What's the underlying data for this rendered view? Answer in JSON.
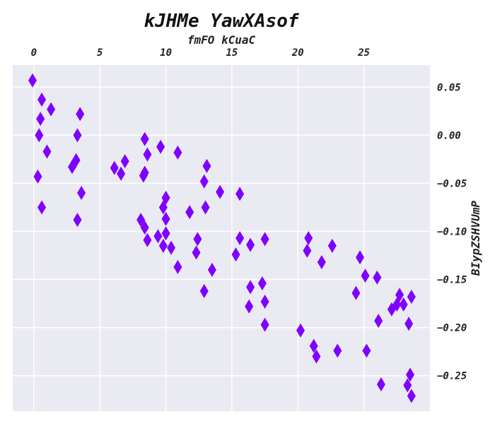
{
  "chart_data": {
    "type": "scatter",
    "title": "kJHMe YawXAsof",
    "xlabel": "fmFO kCuaC",
    "ylabel": "BIypZSHVUmP",
    "xaxis_position": "top",
    "yaxis_position": "right",
    "grid": true,
    "xlim": [
      -1.6,
      30.0
    ],
    "ylim": [
      -0.287,
      0.073
    ],
    "xticks": [
      0,
      5,
      10,
      15,
      20,
      25
    ],
    "xtick_labels": [
      "0",
      "5",
      "10",
      "15",
      "20",
      "25"
    ],
    "yticks": [
      0.05,
      0.0,
      -0.05,
      -0.1,
      -0.15,
      -0.2,
      -0.25
    ],
    "ytick_labels": [
      "0.05",
      "0.00",
      "−0.05",
      "−0.10",
      "−0.15",
      "−0.20",
      "−0.25"
    ],
    "marker": "diamond",
    "marker_color": "#7F00FF",
    "series": [
      {
        "points": [
          [
            -0.1,
            0.057
          ],
          [
            0.6,
            0.037
          ],
          [
            1.3,
            0.027
          ],
          [
            0.5,
            0.017
          ],
          [
            0.4,
            -0.0
          ],
          [
            1.0,
            -0.017
          ],
          [
            0.3,
            -0.043
          ],
          [
            0.6,
            -0.075
          ],
          [
            3.5,
            0.022
          ],
          [
            3.3,
            -0.0
          ],
          [
            3.2,
            -0.026
          ],
          [
            2.9,
            -0.033
          ],
          [
            3.6,
            -0.06
          ],
          [
            3.3,
            -0.088
          ],
          [
            6.1,
            -0.034
          ],
          [
            6.6,
            -0.04
          ],
          [
            6.9,
            -0.027
          ],
          [
            8.4,
            -0.004
          ],
          [
            8.6,
            -0.02
          ],
          [
            8.4,
            -0.039
          ],
          [
            8.3,
            -0.042
          ],
          [
            9.6,
            -0.012
          ],
          [
            10.9,
            -0.018
          ],
          [
            8.1,
            -0.088
          ],
          [
            8.4,
            -0.096
          ],
          [
            8.6,
            -0.109
          ],
          [
            9.4,
            -0.105
          ],
          [
            10.0,
            -0.065
          ],
          [
            9.8,
            -0.075
          ],
          [
            10.0,
            -0.087
          ],
          [
            10.0,
            -0.102
          ],
          [
            9.8,
            -0.115
          ],
          [
            10.4,
            -0.117
          ],
          [
            10.9,
            -0.137
          ],
          [
            11.8,
            -0.08
          ],
          [
            12.4,
            -0.108
          ],
          [
            12.3,
            -0.122
          ],
          [
            13.1,
            -0.032
          ],
          [
            12.9,
            -0.048
          ],
          [
            13.0,
            -0.075
          ],
          [
            14.1,
            -0.059
          ],
          [
            12.9,
            -0.162
          ],
          [
            13.5,
            -0.14
          ],
          [
            15.6,
            -0.061
          ],
          [
            15.6,
            -0.107
          ],
          [
            15.3,
            -0.124
          ],
          [
            16.4,
            -0.114
          ],
          [
            16.4,
            -0.158
          ],
          [
            16.3,
            -0.178
          ],
          [
            17.5,
            -0.108
          ],
          [
            17.3,
            -0.154
          ],
          [
            17.5,
            -0.173
          ],
          [
            17.5,
            -0.197
          ],
          [
            20.8,
            -0.107
          ],
          [
            20.7,
            -0.12
          ],
          [
            21.8,
            -0.132
          ],
          [
            22.6,
            -0.115
          ],
          [
            20.2,
            -0.203
          ],
          [
            21.2,
            -0.219
          ],
          [
            21.4,
            -0.23
          ],
          [
            23.0,
            -0.224
          ],
          [
            24.7,
            -0.127
          ],
          [
            25.1,
            -0.146
          ],
          [
            24.4,
            -0.164
          ],
          [
            26.0,
            -0.148
          ],
          [
            26.1,
            -0.193
          ],
          [
            25.2,
            -0.224
          ],
          [
            26.3,
            -0.259
          ],
          [
            27.1,
            -0.181
          ],
          [
            27.5,
            -0.176
          ],
          [
            27.7,
            -0.166
          ],
          [
            28.0,
            -0.176
          ],
          [
            28.4,
            -0.196
          ],
          [
            28.6,
            -0.168
          ],
          [
            28.5,
            -0.249
          ],
          [
            28.3,
            -0.26
          ],
          [
            28.6,
            -0.271
          ]
        ]
      }
    ]
  }
}
